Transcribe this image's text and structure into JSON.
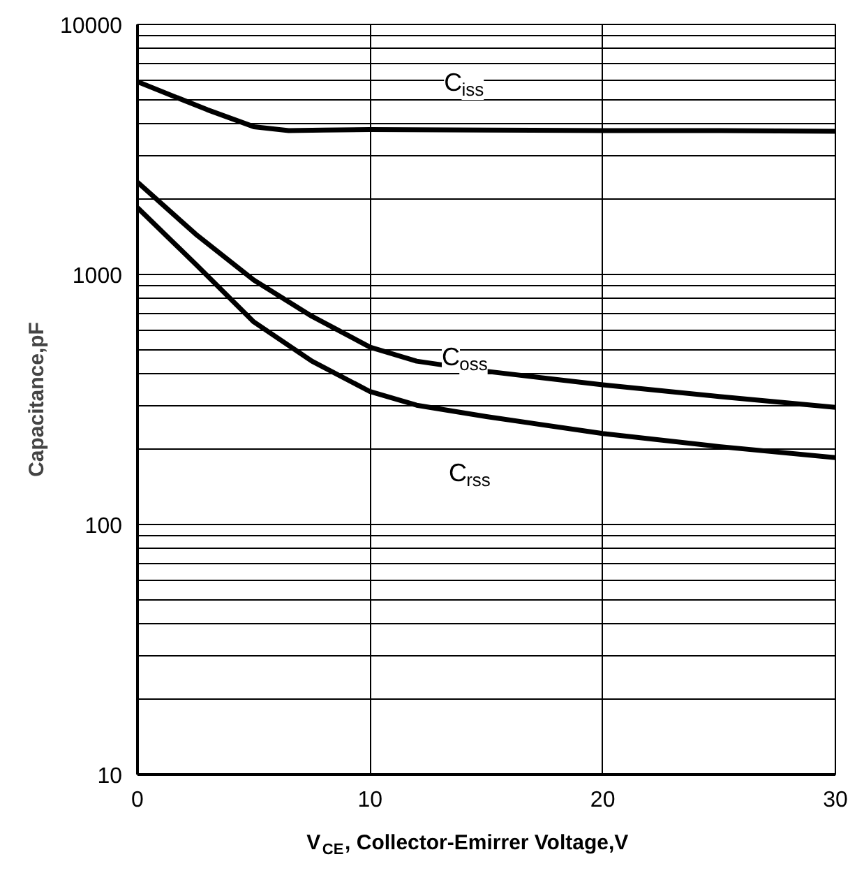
{
  "chart_data": {
    "type": "line",
    "xlabel": "V$_{CE}$, Collector-Emirrer Voltage,V",
    "ylabel": "Capacitance,pF",
    "log": "y",
    "grid": true,
    "line_style": "solid",
    "marker": "none",
    "xlim": [
      0,
      30
    ],
    "ylim": [
      10,
      10000
    ],
    "xticks": [
      0,
      10,
      20,
      30
    ],
    "yticks": [
      10,
      100,
      1000,
      10000
    ],
    "series": [
      {
        "name": "C$_{iss}$",
        "color": "#000000",
        "x": [
          0,
          3,
          5,
          6.5,
          8,
          10,
          15,
          20,
          25,
          30
        ],
        "values": [
          5900,
          4560,
          3900,
          3760,
          3780,
          3800,
          3780,
          3760,
          3760,
          3740
        ]
      },
      {
        "name": "C$_{oss}$",
        "color": "#000000",
        "x": [
          0,
          2.5,
          5,
          7.5,
          10,
          12,
          15,
          20,
          25,
          30
        ],
        "values": [
          2340,
          1450,
          950,
          680,
          512,
          450,
          410,
          362,
          325,
          294
        ]
      },
      {
        "name": "C$_{rss}$",
        "color": "#000000",
        "x": [
          0,
          2.5,
          5,
          7.5,
          10,
          12,
          15,
          20,
          25,
          30
        ],
        "values": [
          1850,
          1100,
          646,
          450,
          340,
          300,
          270,
          231,
          205,
          185
        ]
      }
    ]
  }
}
